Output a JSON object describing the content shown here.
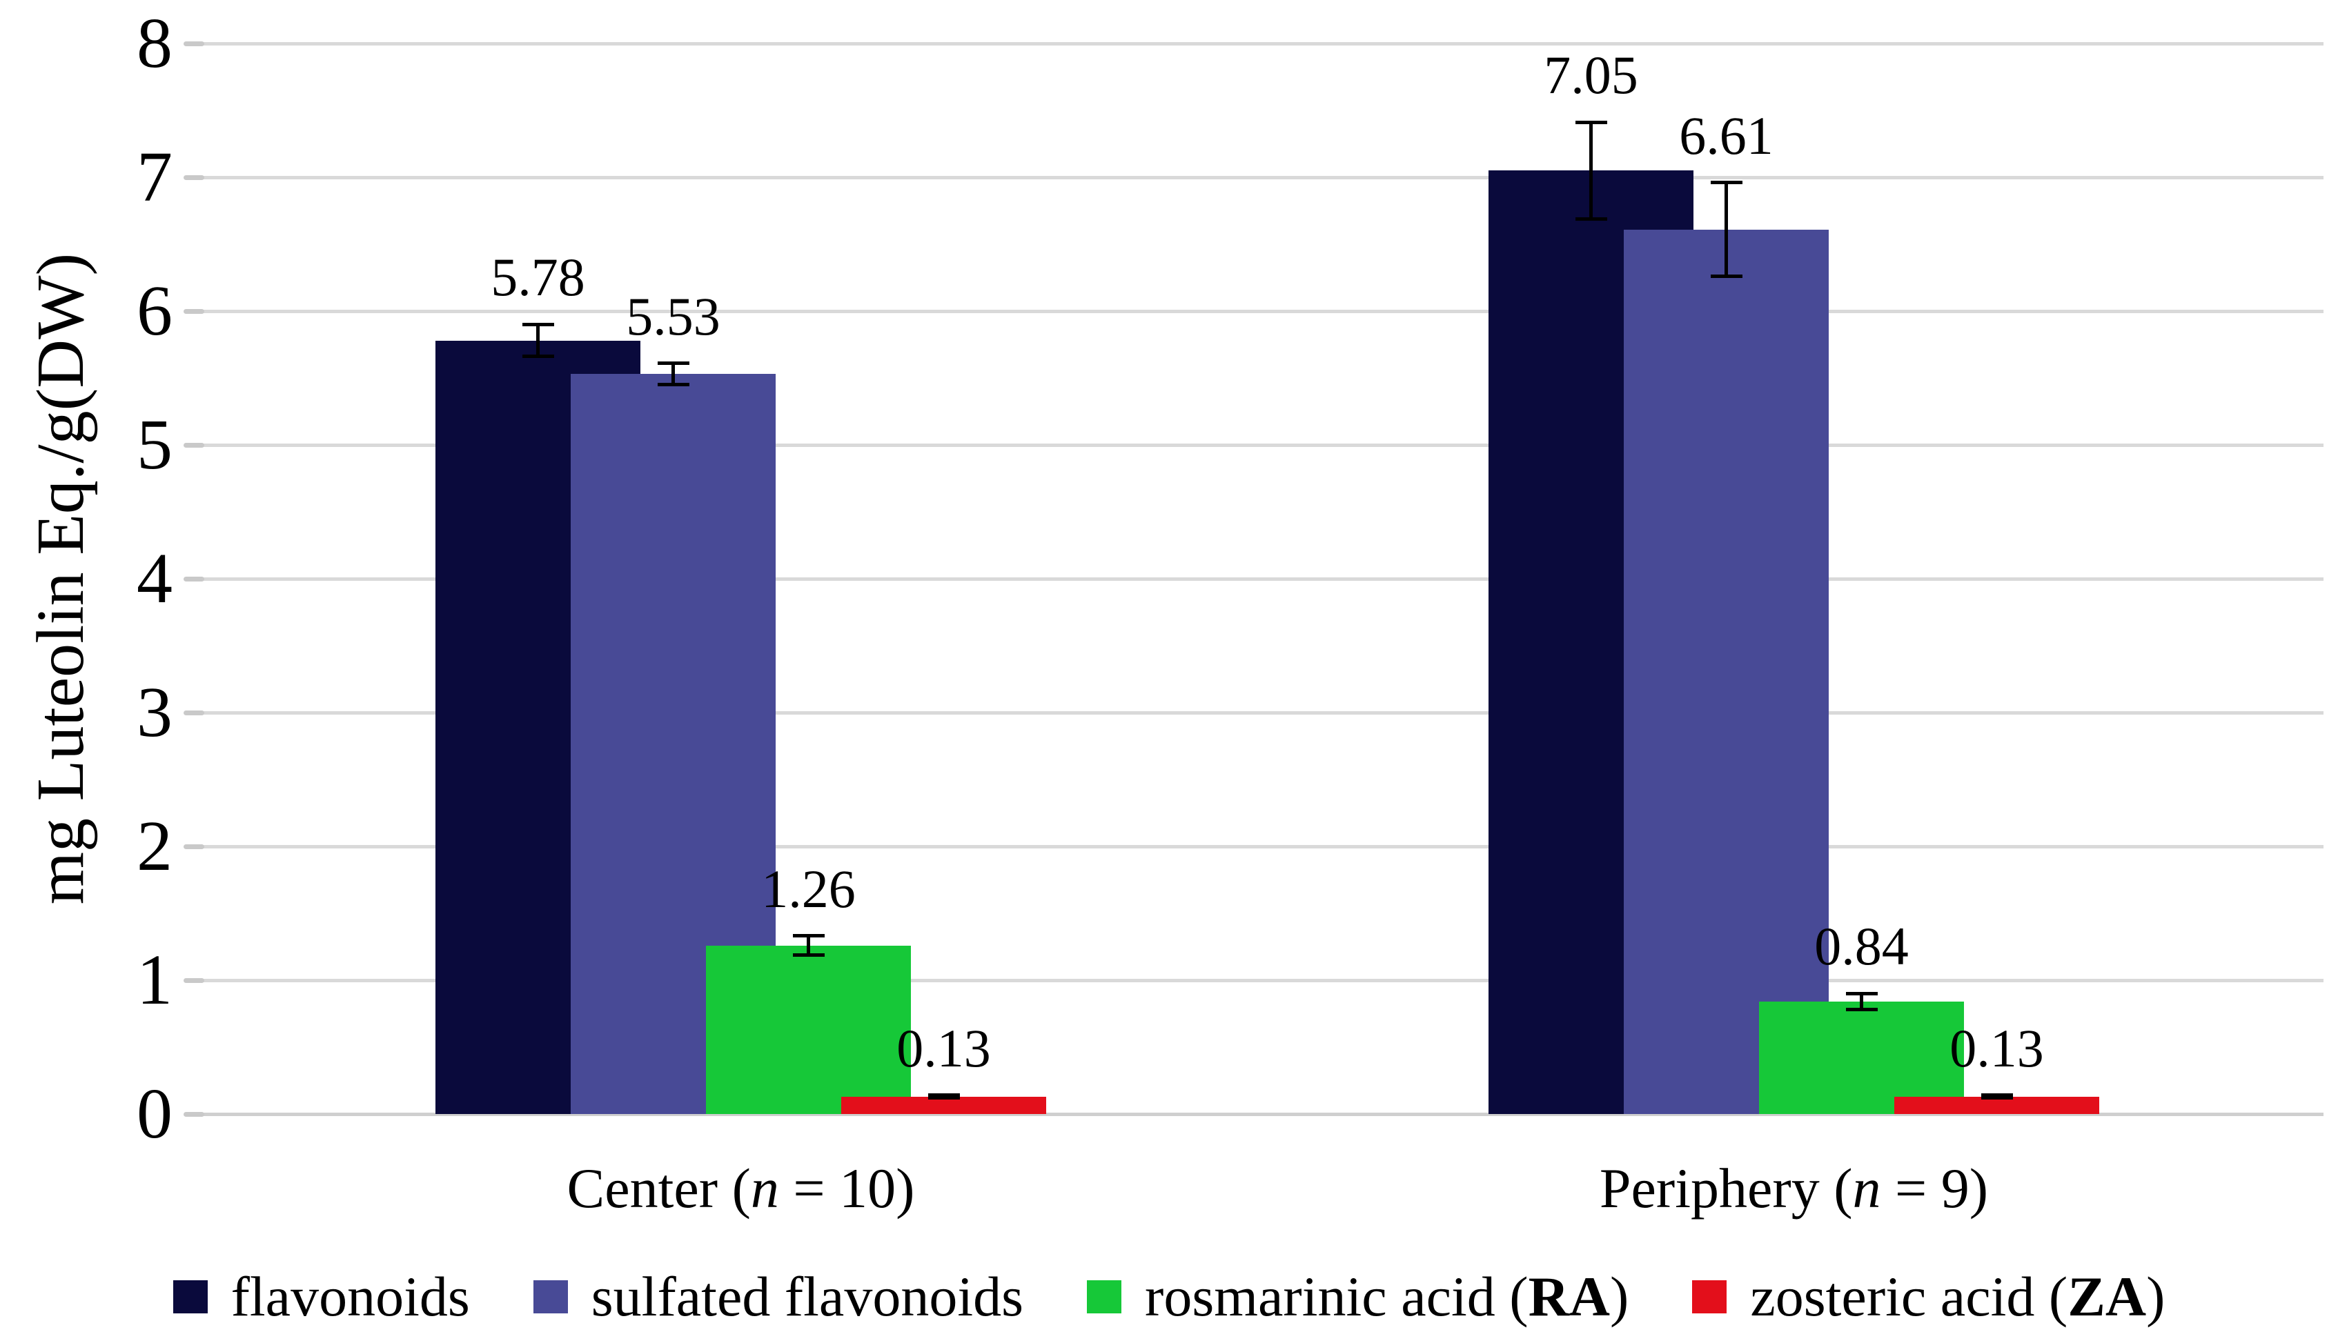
{
  "chart_data": {
    "type": "bar",
    "title": "",
    "ylabel": "mg Luteolin Eq./g(DW)",
    "xlabel": "",
    "ylim": [
      0,
      8
    ],
    "ytick_step": 1,
    "grid": true,
    "legend_position": "bottom",
    "categories": [
      "Center (*n* = 10)",
      "Periphery (*n* = 9)"
    ],
    "series": [
      {
        "name": "flavonoids",
        "color": "#0a0a3c",
        "values": [
          5.78,
          7.05
        ],
        "errors": [
          0.12,
          0.36
        ]
      },
      {
        "name": "sulfated flavonoids",
        "color": "#484a96",
        "values": [
          5.53,
          6.61
        ],
        "errors": [
          0.08,
          0.35
        ]
      },
      {
        "name": "rosmarinic acid (**RA**)",
        "color": "#16c838",
        "values": [
          1.26,
          0.84
        ],
        "errors": [
          0.07,
          0.06
        ]
      },
      {
        "name": "zosteric acid (**ZA**)",
        "color": "#e30f1b",
        "values": [
          0.13,
          0.13
        ],
        "errors": [
          0.01,
          0.01
        ]
      }
    ],
    "value_label_format": "0.00"
  }
}
